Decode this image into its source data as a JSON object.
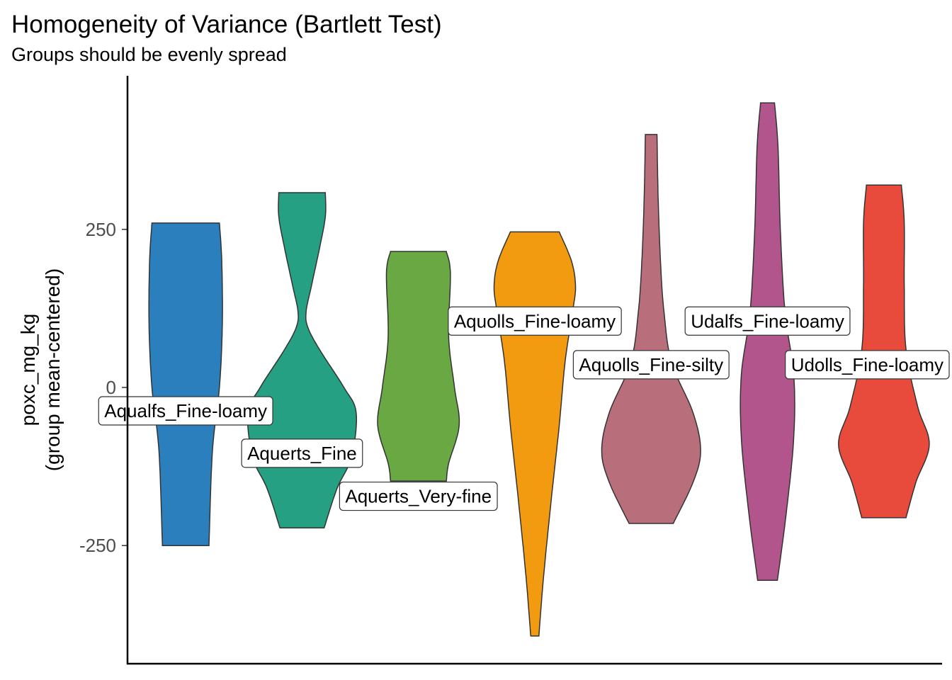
{
  "chart_data": {
    "type": "violin",
    "title": "Homogeneity of Variance (Bartlett Test)",
    "subtitle": "Groups should be evenly spread",
    "xlabel": "",
    "ylabel_lines": [
      "poxc_mg_kg",
      "(group mean-centered)"
    ],
    "ylim": [
      -430,
      460
    ],
    "yticks": [
      -250,
      0,
      250
    ],
    "ytick_labels": [
      "-250",
      "0",
      "250"
    ],
    "grid": false,
    "legend": "none",
    "groups": [
      {
        "name": "Aqualfs_Fine-loamy",
        "color": "#2a7fbc",
        "label_y": -37,
        "profile": [
          [
            -250,
            0.4
          ],
          [
            -100,
            0.46
          ],
          [
            0,
            0.58
          ],
          [
            100,
            0.63
          ],
          [
            200,
            0.62
          ],
          [
            260,
            0.58
          ]
        ]
      },
      {
        "name": "Aquerts_Fine",
        "color": "#26a083",
        "label_y": -104,
        "profile": [
          [
            -222,
            0.38
          ],
          [
            -160,
            0.6
          ],
          [
            -110,
            0.85
          ],
          [
            -40,
            0.93
          ],
          [
            0,
            0.72
          ],
          [
            60,
            0.3
          ],
          [
            95,
            0.1
          ],
          [
            120,
            0.07
          ],
          [
            160,
            0.16
          ],
          [
            220,
            0.3
          ],
          [
            270,
            0.4
          ],
          [
            308,
            0.4
          ]
        ]
      },
      {
        "name": "Aquerts_Very-fine",
        "color": "#6aa843",
        "label_y": -172,
        "profile": [
          [
            -148,
            0.48
          ],
          [
            -120,
            0.52
          ],
          [
            -60,
            0.7
          ],
          [
            0,
            0.62
          ],
          [
            80,
            0.52
          ],
          [
            180,
            0.55
          ],
          [
            215,
            0.48
          ]
        ]
      },
      {
        "name": "Aquolls_Fine-loamy",
        "color": "#f29b11",
        "label_y": 105,
        "profile": [
          [
            -393,
            0.07
          ],
          [
            -300,
            0.15
          ],
          [
            -180,
            0.28
          ],
          [
            -60,
            0.42
          ],
          [
            40,
            0.52
          ],
          [
            120,
            0.65
          ],
          [
            160,
            0.7
          ],
          [
            200,
            0.63
          ],
          [
            246,
            0.42
          ]
        ]
      },
      {
        "name": "Aquolls_Fine-silty",
        "color": "#b86e7b",
        "label_y": 36,
        "profile": [
          [
            -215,
            0.38
          ],
          [
            -150,
            0.72
          ],
          [
            -100,
            0.85
          ],
          [
            -40,
            0.72
          ],
          [
            40,
            0.35
          ],
          [
            120,
            0.22
          ],
          [
            200,
            0.16
          ],
          [
            300,
            0.12
          ],
          [
            400,
            0.1
          ]
        ]
      },
      {
        "name": "Udalfs_Fine-loamy",
        "color": "#b3558d",
        "label_y": 105,
        "profile": [
          [
            -305,
            0.17
          ],
          [
            -200,
            0.32
          ],
          [
            -80,
            0.45
          ],
          [
            20,
            0.45
          ],
          [
            120,
            0.3
          ],
          [
            250,
            0.22
          ],
          [
            380,
            0.18
          ],
          [
            450,
            0.12
          ]
        ]
      },
      {
        "name": "Udolls_Fine-loamy",
        "color": "#e84b3c",
        "label_y": 36,
        "profile": [
          [
            -206,
            0.38
          ],
          [
            -150,
            0.55
          ],
          [
            -90,
            0.78
          ],
          [
            -30,
            0.58
          ],
          [
            60,
            0.38
          ],
          [
            160,
            0.35
          ],
          [
            260,
            0.35
          ],
          [
            320,
            0.3
          ]
        ]
      }
    ]
  }
}
